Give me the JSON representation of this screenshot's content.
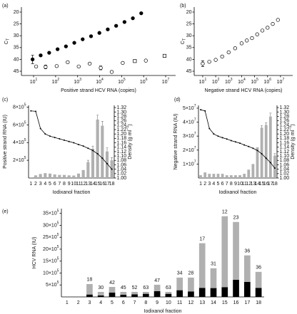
{
  "chart_data": [
    {
      "type": "scatter",
      "panel": "(a)",
      "xlabel": "Positive strand HCV RNA (copies)",
      "ylabel": "C",
      "ylabel_sub": "T",
      "xscale": "log",
      "xlim": [
        2.8,
        28400000
      ],
      "ylim": [
        46.8,
        17.9
      ],
      "xticks": [
        {
          "value": 10,
          "label": "10",
          "exponent": "1"
        },
        {
          "value": 100,
          "label": "10",
          "exponent": "2"
        },
        {
          "value": 1000,
          "label": "10",
          "exponent": "3"
        },
        {
          "value": 10000,
          "label": "10",
          "exponent": "4"
        },
        {
          "value": 100000,
          "label": "10",
          "exponent": "5"
        },
        {
          "value": 1000000,
          "label": "10",
          "exponent": "6"
        },
        {
          "value": 10000000,
          "label": "10",
          "exponent": "7"
        }
      ],
      "yticks": [
        20,
        25,
        30,
        35,
        40,
        45
      ],
      "series": [
        {
          "marker": "circle",
          "filled": true,
          "color": "#000000",
          "x": [
            9,
            21,
            51,
            123,
            295,
            708,
            1698,
            4074,
            9772,
            23442,
            56234,
            134896,
            323594,
            776247
          ],
          "values": [
            40,
            38.3,
            37.2,
            35.7,
            34.5,
            33,
            31.5,
            30.2,
            28.8,
            27.3,
            25.8,
            24.2,
            22.6,
            20.5
          ],
          "errors": [
            1.8,
            null,
            null,
            null,
            null,
            null,
            null,
            null,
            null,
            null,
            null,
            null,
            null,
            null
          ]
        },
        {
          "marker": "circle",
          "filled": false,
          "color": "#000000",
          "x": [
            13,
            35,
            112,
            355,
            1122,
            3548,
            11220,
            35481,
            112202,
            1258925
          ],
          "values": [
            43,
            43.2,
            42.8,
            41.2,
            43,
            41.8,
            43.6,
            45.3,
            41.5,
            40.5
          ],
          "errors": [
            null,
            0.8,
            null,
            null,
            null,
            null,
            0.8,
            null,
            null,
            null
          ]
        },
        {
          "marker": "square",
          "filled": false,
          "color": "#000000",
          "x": [
            398107,
            8912509
          ],
          "values": [
            40.7,
            38.5
          ]
        }
      ]
    },
    {
      "type": "scatter",
      "panel": "(b)",
      "xlabel": "Negative strand HCV RNA (copies)",
      "ylabel": "C",
      "ylabel_sub": "T",
      "xscale": "log",
      "xlim": [
        2.2,
        87000000
      ],
      "ylim": [
        46.8,
        17.9
      ],
      "xticks": [
        {
          "value": 10,
          "label": "10",
          "exponent": "1"
        },
        {
          "value": 100,
          "label": "10",
          "exponent": "2"
        },
        {
          "value": 1000,
          "label": "10",
          "exponent": "3"
        },
        {
          "value": 10000,
          "label": "10",
          "exponent": "4"
        },
        {
          "value": 100000,
          "label": "10",
          "exponent": "5"
        },
        {
          "value": 1000000,
          "label": "10",
          "exponent": "6"
        },
        {
          "value": 10000000,
          "label": "10",
          "exponent": "7"
        }
      ],
      "yticks": [
        20,
        25,
        30,
        35,
        40,
        45
      ],
      "series": [
        {
          "marker": "circle",
          "filled": false,
          "color": "#000000",
          "x": [
            10,
            32,
            100,
            316,
            1000,
            3162,
            10000,
            25119,
            63096,
            158489,
            398107,
            1000000,
            2511886,
            6309573
          ],
          "values": [
            41.8,
            41,
            40.2,
            38.8,
            37,
            35.3,
            33.2,
            32,
            31,
            29.4,
            27.8,
            26.6,
            25,
            23.3
          ],
          "errors": [
            1.2,
            null,
            null,
            null,
            null,
            null,
            null,
            null,
            null,
            null,
            null,
            null,
            null,
            null
          ]
        }
      ]
    },
    {
      "type": "bar",
      "panel": "(c)",
      "xlabel": "Iodixanol fraction",
      "ylabel": "Positive strand RNA (IU)",
      "y2label": "Density (g ml",
      "y2label_sup": "−1",
      "y2label_end": ")",
      "categories": [
        "1",
        "2",
        "3",
        "4",
        "5",
        "6",
        "7",
        "8",
        "9",
        "10",
        "11",
        "12",
        "13",
        "14",
        "15",
        "16",
        "17",
        "18"
      ],
      "ylim": [
        0,
        820000
      ],
      "yticks": [
        {
          "value": 200000,
          "label": "2×10",
          "exponent": "5"
        },
        {
          "value": 400000,
          "label": "4×10",
          "exponent": "5"
        },
        {
          "value": 600000,
          "label": "6×10",
          "exponent": "5"
        },
        {
          "value": 800000,
          "label": "8×10",
          "exponent": "5"
        }
      ],
      "y2lim": [
        1,
        1.33
      ],
      "y2ticks": [
        {
          "value": 1,
          "label": "1.00"
        },
        1.02,
        1.04,
        1.06,
        1.08,
        {
          "value": 1.1,
          "label": "1.10"
        },
        1.12,
        1.14,
        1.16,
        1.18,
        {
          "value": 1.2,
          "label": "1.20"
        },
        1.22,
        1.24,
        1.26,
        1.28,
        {
          "value": 1.3,
          "label": "1.30"
        },
        1.32
      ],
      "series": [
        {
          "type": "bar",
          "color": "#b0b0b0",
          "values": [
            8000,
            30000,
            45000,
            55000,
            50000,
            40000,
            35000,
            35000,
            30000,
            28000,
            50000,
            90000,
            180000,
            330000,
            660000,
            590000,
            300000,
            200000
          ],
          "errors": [
            null,
            null,
            null,
            null,
            null,
            null,
            null,
            null,
            null,
            null,
            null,
            null,
            20000,
            30000,
            50000,
            50000,
            40000,
            30000
          ]
        },
        {
          "type": "line",
          "axis": "y2",
          "color": "#000000",
          "values": [
            1.305,
            1.303,
            1.225,
            1.2,
            1.19,
            1.184,
            1.178,
            1.172,
            1.166,
            1.16,
            1.152,
            1.145,
            1.135,
            1.125,
            1.11,
            1.09,
            1.065,
            1.04
          ]
        }
      ]
    },
    {
      "type": "bar",
      "panel": "(d)",
      "xlabel": "Iodixanol fraction",
      "ylabel": "Negative strand RNA (IU)",
      "y2label": "Density (g ml",
      "y2label_sup": "−1",
      "y2label_end": ")",
      "categories": [
        "1",
        "2",
        "3",
        "4",
        "5",
        "6",
        "7",
        "8",
        "9",
        "10",
        "11",
        "12",
        "13",
        "14",
        "15",
        "16",
        "17",
        "18"
      ],
      "ylim": [
        0,
        52000000
      ],
      "yticks": [
        {
          "value": 10000000,
          "label": "1×10",
          "exponent": "7"
        },
        {
          "value": 20000000,
          "label": "2×10",
          "exponent": "7"
        },
        {
          "value": 30000000,
          "label": "3×10",
          "exponent": "7"
        },
        {
          "value": 40000000,
          "label": "4×10",
          "exponent": "7"
        },
        {
          "value": 50000000,
          "label": "5×10",
          "exponent": "7"
        }
      ],
      "y2lim": [
        1,
        1.33
      ],
      "y2ticks": [
        {
          "value": 1,
          "label": "1.00"
        },
        1.02,
        1.04,
        1.06,
        1.08,
        {
          "value": 1.1,
          "label": "1.10"
        },
        1.12,
        1.14,
        1.16,
        1.18,
        {
          "value": 1.2,
          "label": "1.20"
        },
        1.22,
        1.24,
        1.26,
        1.28,
        {
          "value": 1.3,
          "label": "1.30"
        },
        1.32
      ],
      "series": [
        {
          "type": "bar",
          "color": "#b0b0b0",
          "values": [
            2000000,
            4000000,
            3000000,
            3000000,
            3000000,
            3000000,
            2000000,
            2000000,
            2000000,
            2000000,
            3000000,
            6000000,
            10000000,
            22000000,
            36000000,
            38000000,
            44000000,
            16000000
          ],
          "errors": [
            null,
            null,
            null,
            null,
            null,
            null,
            null,
            null,
            null,
            null,
            null,
            null,
            null,
            null,
            1500000,
            1500000,
            2500000,
            1500000
          ]
        },
        {
          "type": "line",
          "axis": "y2",
          "color": "#000000",
          "values": [
            1.31,
            1.305,
            1.225,
            1.2,
            1.19,
            1.183,
            1.177,
            1.17,
            1.164,
            1.158,
            1.15,
            1.143,
            1.135,
            1.125,
            1.11,
            1.09,
            1.07,
            1.045
          ]
        }
      ]
    },
    {
      "type": "bar",
      "stacked": true,
      "panel": "(e)",
      "xlabel": "Iodixanol fraction",
      "ylabel": "HCV RNA (IU)",
      "categories": [
        "1",
        "2",
        "3",
        "4",
        "5",
        "6",
        "7",
        "8",
        "9",
        "10",
        "11",
        "12",
        "13",
        "14",
        "15",
        "16",
        "17",
        "18"
      ],
      "ylim": [
        0,
        3700000
      ],
      "yticks": [
        {
          "value": 500000,
          "label": "5×10",
          "exponent": "5"
        },
        {
          "value": 1000000,
          "label": "10×10",
          "exponent": "5"
        },
        {
          "value": 1500000,
          "label": "15×10",
          "exponent": "5"
        },
        {
          "value": 2000000,
          "label": "20×10",
          "exponent": "5"
        },
        {
          "value": 2500000,
          "label": "25×10",
          "exponent": "5"
        },
        {
          "value": 3000000,
          "label": "30×10",
          "exponent": "5"
        },
        {
          "value": 3500000,
          "label": "35×10",
          "exponent": "5"
        }
      ],
      "series": [
        {
          "type": "bar",
          "color": "#000000",
          "values": [
            null,
            null,
            100000,
            60000,
            180000,
            90000,
            110000,
            130000,
            240000,
            130000,
            280000,
            230000,
            380000,
            370000,
            410000,
            720000,
            630000,
            380000
          ]
        },
        {
          "type": "bar",
          "color": "#b0b0b0",
          "values": [
            null,
            null,
            440000,
            150000,
            240000,
            120000,
            100000,
            80000,
            270000,
            80000,
            530000,
            580000,
            1870000,
            830000,
            2970000,
            2420000,
            1110000,
            670000
          ]
        }
      ],
      "labels": [
        null,
        null,
        18,
        30,
        42,
        45,
        52,
        63,
        47,
        63,
        34,
        28,
        17,
        31,
        12,
        23,
        36,
        36
      ]
    }
  ]
}
